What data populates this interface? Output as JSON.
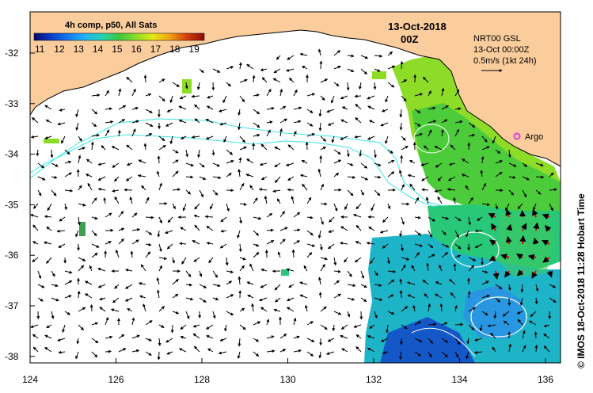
{
  "colorbar": {
    "title": "4h comp, p50, All Sats",
    "ticks": [
      "11",
      "12",
      "13",
      "14",
      "15",
      "16",
      "17",
      "18",
      "19"
    ],
    "colors": [
      "#08086e",
      "#0a3cc8",
      "#1478f0",
      "#1eb4f0",
      "#28d2b4",
      "#3cc83c",
      "#8cdc28",
      "#e6e614",
      "#f0a014",
      "#d23c0a",
      "#8c0a0a"
    ]
  },
  "map_title": {
    "date": "13-Oct-2018",
    "time": "00Z"
  },
  "legend": {
    "product": "NRT00 GSL",
    "datetime": "13-Oct 00:00Z",
    "scale": "0.5m/s (1kt 24h)"
  },
  "argo": {
    "label": "Argo",
    "color": "#e040e0"
  },
  "credit": "© IMOS 18-Oct-2018 11:28 Hobart Time",
  "axes": {
    "x_ticks": [
      "124",
      "126",
      "128",
      "130",
      "132",
      "134",
      "136"
    ],
    "y_ticks": [
      "-32",
      "-33",
      "-34",
      "-35",
      "-36",
      "-37",
      "-38"
    ]
  },
  "colors": {
    "land": "#fbcc9c",
    "ocean": "#ffffff",
    "contour": "#3ce6e6",
    "eddy_contour": "#ffffff",
    "arrow_black": "#000000",
    "arrow_red": "#e00000",
    "arrow_blue": "#0000c0"
  }
}
